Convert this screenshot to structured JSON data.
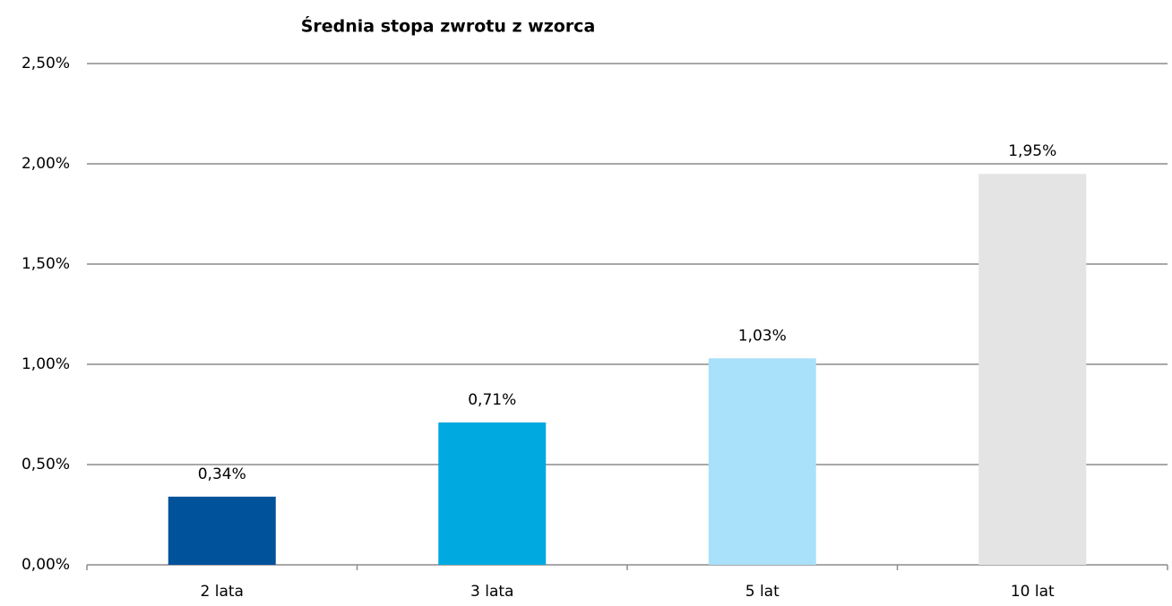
{
  "chart_data": {
    "type": "bar",
    "title": "Średnia stopa zwrotu z wzorca",
    "categories": [
      "2 lata",
      "3 lata",
      "5 lat",
      "10 lat"
    ],
    "values": [
      0.34,
      0.71,
      1.03,
      1.95
    ],
    "value_labels": [
      "0,34%",
      "0,71%",
      "1,03%",
      "1,95%"
    ],
    "colors": [
      "#00529b",
      "#00a9e0",
      "#a9e0fa",
      "#e4e4e4"
    ],
    "ylim": [
      0,
      2.5
    ],
    "yticks": [
      {
        "value": 0,
        "label": "0,00%"
      },
      {
        "value": 0.5,
        "label": "0,50%"
      },
      {
        "value": 1,
        "label": "1,00%"
      },
      {
        "value": 1.5,
        "label": "1,50%"
      },
      {
        "value": 2,
        "label": "2,00%"
      },
      {
        "value": 2.5,
        "label": "2,50%"
      }
    ],
    "grid": true
  }
}
